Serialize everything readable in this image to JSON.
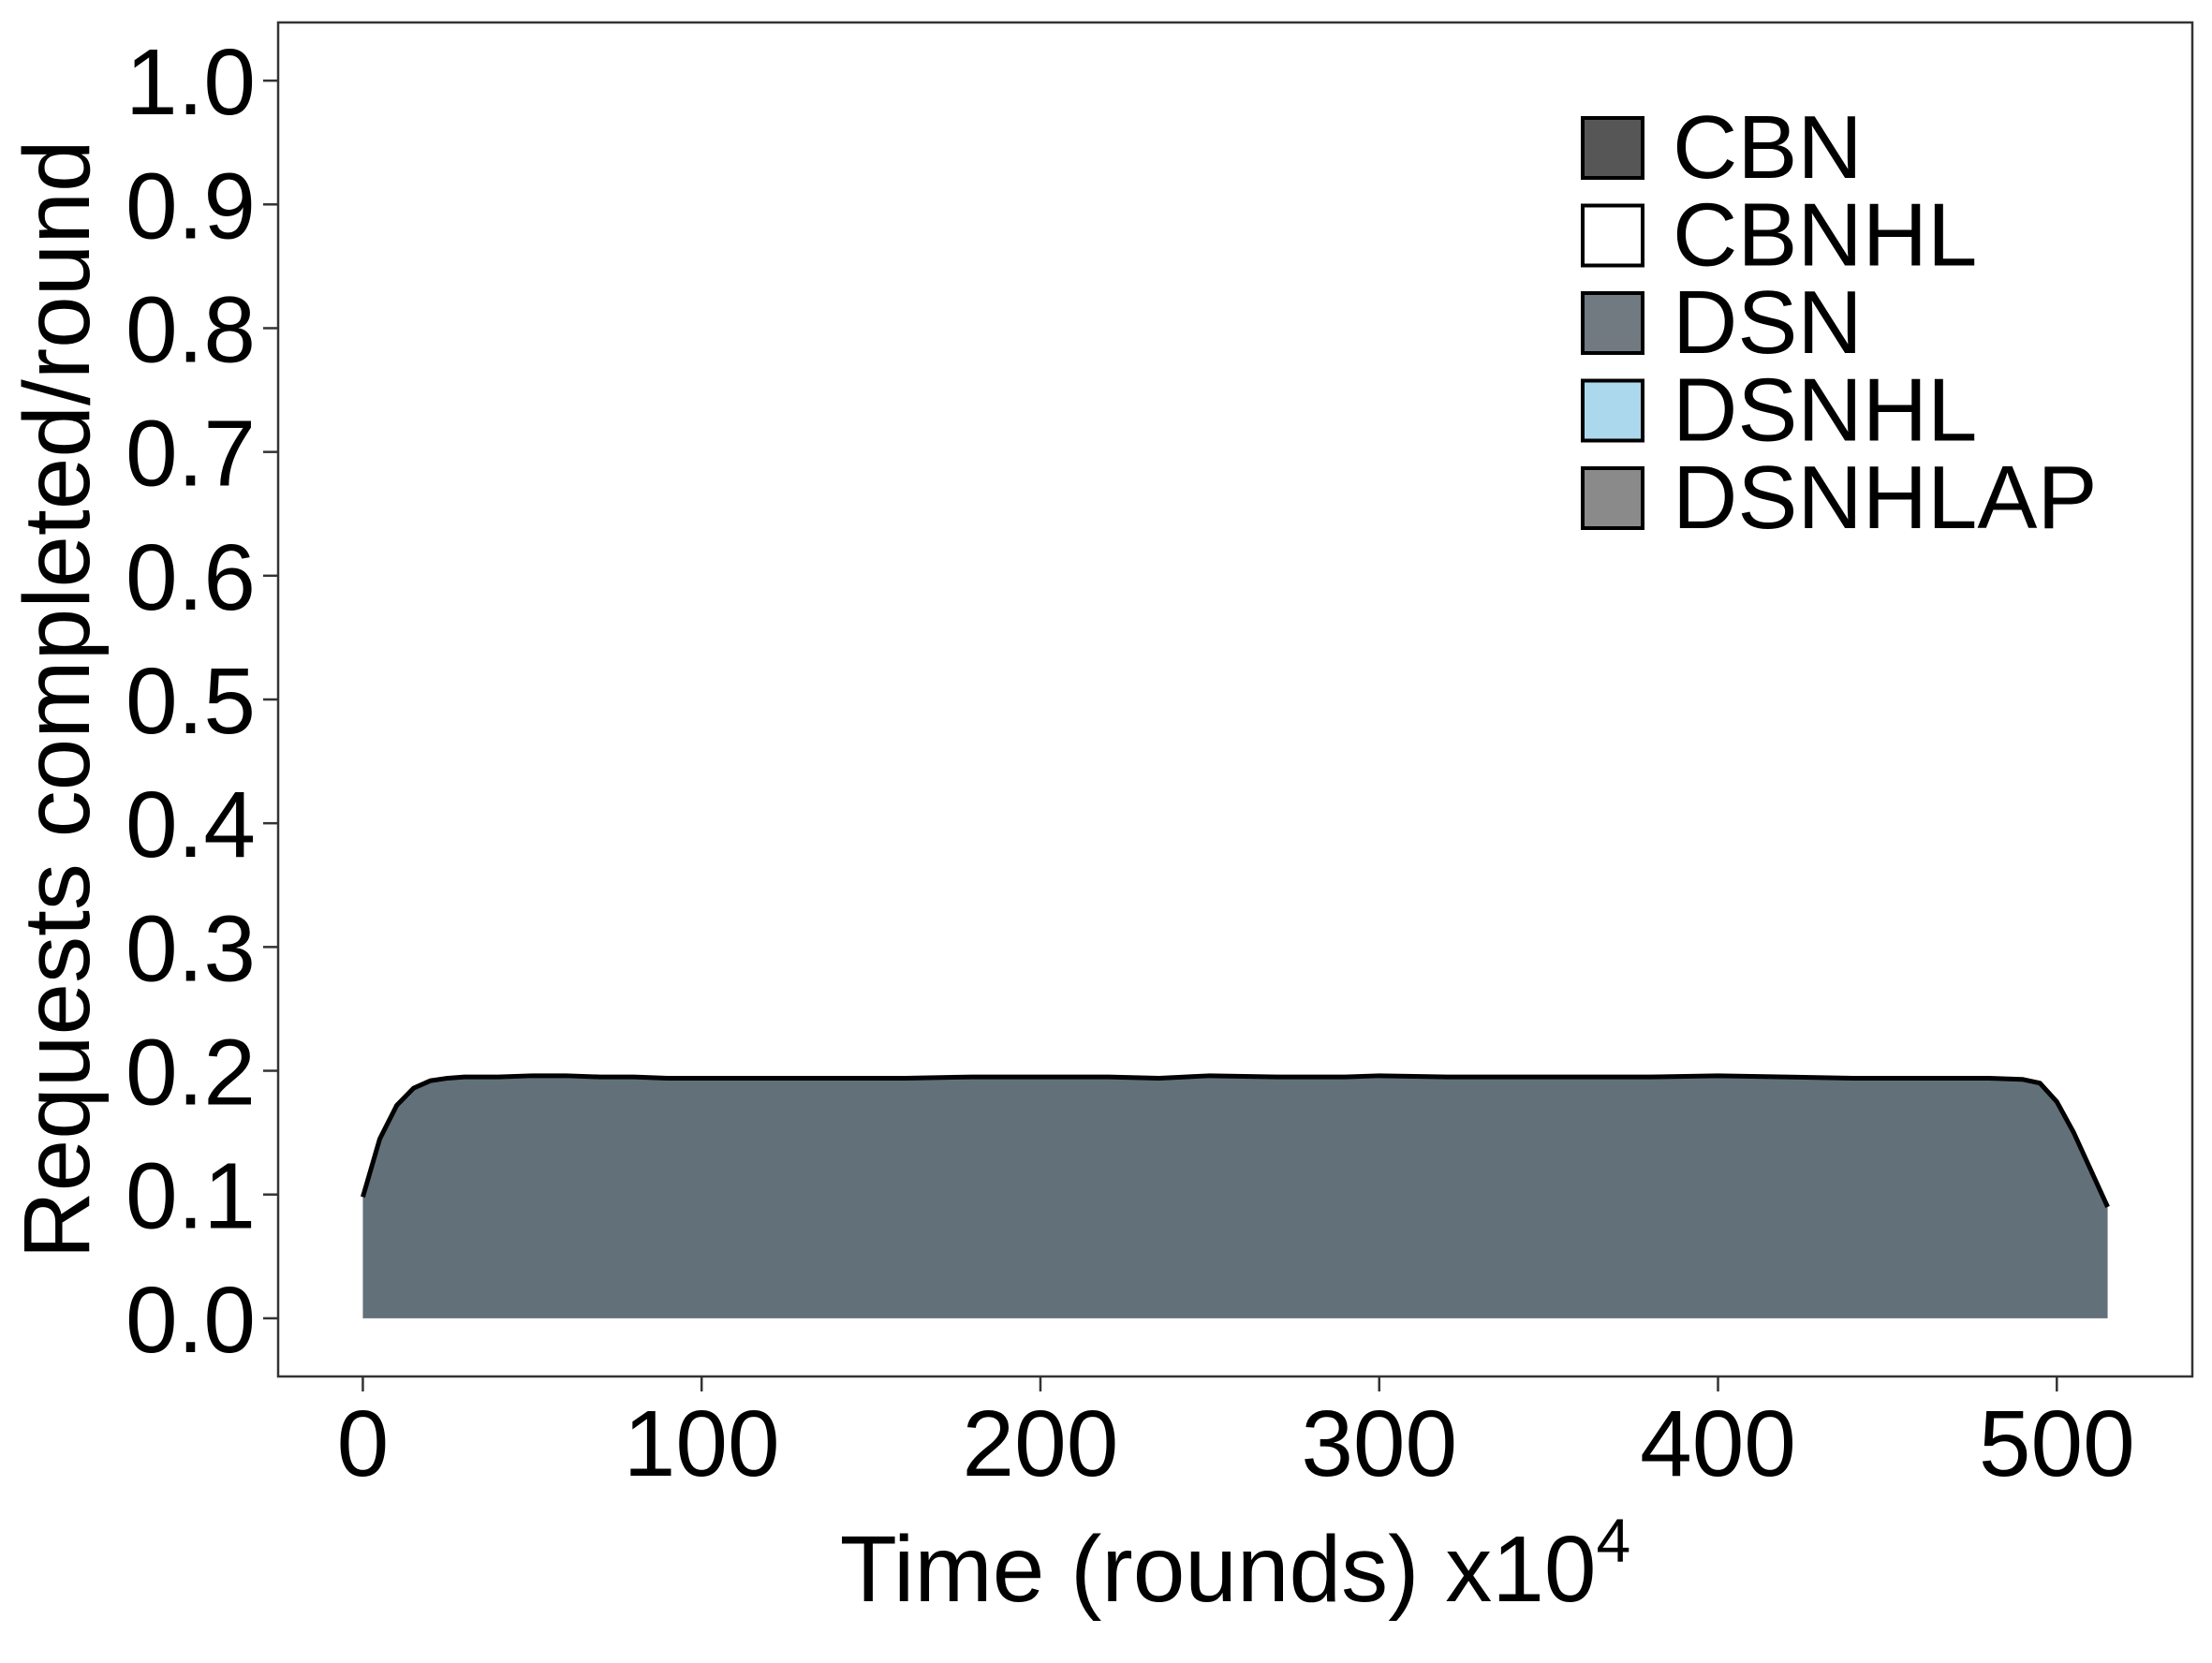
{
  "chart_data": {
    "type": "area",
    "title": "",
    "xlabel": {
      "base": "Time (rounds) x10",
      "superscript": "4"
    },
    "ylabel": "Requests completed/round",
    "xlim": [
      -25,
      540
    ],
    "ylim": [
      -0.047,
      1.047
    ],
    "x_ticks": [
      0,
      100,
      200,
      300,
      400,
      500
    ],
    "x_tick_labels": [
      "0",
      "100",
      "200",
      "300",
      "400",
      "500"
    ],
    "y_ticks": [
      0.0,
      0.1,
      0.2,
      0.3,
      0.4,
      0.5,
      0.6,
      0.7,
      0.8,
      0.9,
      1.0
    ],
    "y_tick_labels": [
      "0.0",
      "0.1",
      "0.2",
      "0.3",
      "0.4",
      "0.5",
      "0.6",
      "0.7",
      "0.8",
      "0.9",
      "1.0"
    ],
    "grid": false,
    "legend_position": "top-right",
    "legend": [
      {
        "name": "CBN",
        "color": "#565656"
      },
      {
        "name": "CBNHL",
        "color": "#ffffff"
      },
      {
        "name": "DSN",
        "color": "#707a80"
      },
      {
        "name": "DSNHL",
        "color": "#acd8ee"
      },
      {
        "name": "DSNHLAP",
        "color": "#8a8a8a"
      }
    ],
    "series": [
      {
        "name": "DSN",
        "color": "#627179",
        "x": [
          0,
          5,
          10,
          15,
          20,
          25,
          30,
          40,
          50,
          60,
          70,
          80,
          90,
          100,
          120,
          140,
          160,
          180,
          200,
          220,
          235,
          250,
          270,
          290,
          300,
          320,
          340,
          360,
          380,
          400,
          420,
          440,
          460,
          480,
          490,
          495,
          500,
          505,
          510,
          515
        ],
        "values": [
          0.098,
          0.145,
          0.172,
          0.186,
          0.192,
          0.194,
          0.195,
          0.195,
          0.196,
          0.196,
          0.195,
          0.195,
          0.194,
          0.194,
          0.194,
          0.194,
          0.194,
          0.195,
          0.195,
          0.195,
          0.194,
          0.196,
          0.195,
          0.195,
          0.196,
          0.195,
          0.195,
          0.195,
          0.195,
          0.196,
          0.195,
          0.194,
          0.194,
          0.194,
          0.193,
          0.19,
          0.175,
          0.15,
          0.12,
          0.09
        ]
      }
    ]
  }
}
